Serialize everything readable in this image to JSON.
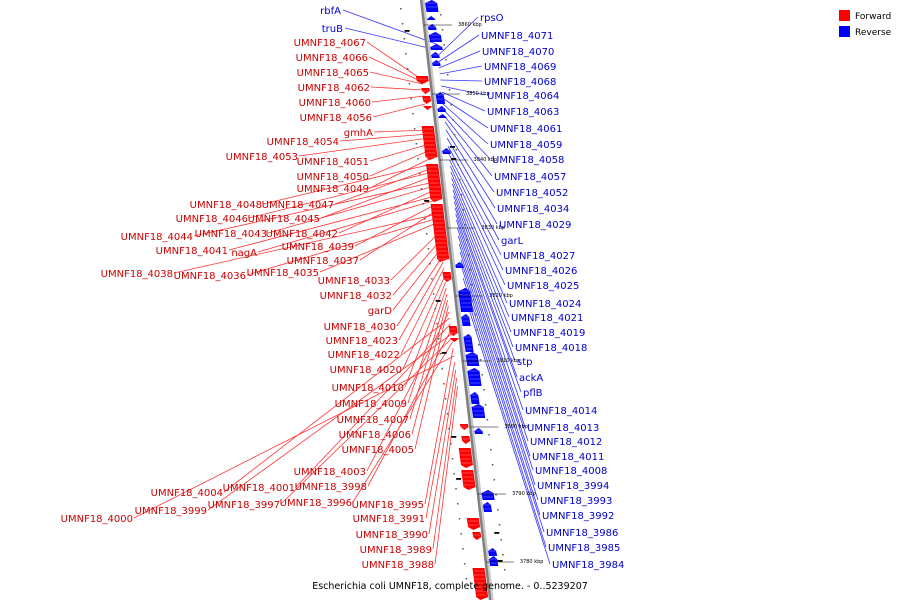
{
  "caption": "Escherichia coli UMNF18, complete genome. - 0..5239207",
  "legend": [
    {
      "label": "Forward",
      "color": "#ff0000"
    },
    {
      "label": "Reverse",
      "color": "#0000ff"
    }
  ],
  "colors": {
    "forward_label": "#cc0000",
    "reverse_label": "#0000cc",
    "forward_feature": "#ff0000",
    "reverse_feature": "#0000ff",
    "backbone": "#808080",
    "leader_forward": "#ff3333",
    "leader_reverse": "#3333ff"
  },
  "scale_ticks": [
    "3860 kbp",
    "3850 kbp",
    "3840 kbp",
    "3830 kbp",
    "3820 kbp",
    "3810 kbp",
    "3800 kbp",
    "3790 kbp",
    "3780 kbp"
  ],
  "forward_genes": [
    "UMNF18_4067",
    "UMNF18_4066",
    "UMNF18_4065",
    "UMNF18_4062",
    "UMNF18_4060",
    "UMNF18_4056",
    "gmhA",
    "UMNF18_4054",
    "UMNF18_4053",
    "UMNF18_4051",
    "UMNF18_4050",
    "UMNF18_4049",
    "UMNF18_4048",
    "UMNF18_4047",
    "UMNF18_4046",
    "UMNF18_4045",
    "UMNF18_4044",
    "UMNF18_4043",
    "UMNF18_4042",
    "UMNF18_4041",
    "nagA",
    "UMNF18_4039",
    "UMNF18_4037",
    "UMNF18_4038",
    "UMNF18_4036",
    "UMNF18_4035",
    "UMNF18_4033",
    "UMNF18_4032",
    "garD",
    "UMNF18_4030",
    "UMNF18_4023",
    "UMNF18_4022",
    "UMNF18_4020",
    "UMNF18_4010",
    "UMNF18_4009",
    "UMNF18_4007",
    "UMNF18_4006",
    "UMNF18_4005",
    "UMNF18_4003",
    "UMNF18_4004",
    "UMNF18_4001",
    "UMNF18_3998",
    "UMNF18_3999",
    "UMNF18_3997",
    "UMNF18_3996",
    "UMNF18_3995",
    "UMNF18_4000",
    "UMNF18_3991",
    "UMNF18_3990",
    "UMNF18_3989",
    "UMNF18_3988"
  ],
  "reverse_genes": [
    "rbfA",
    "truB",
    "rpsO",
    "UMNF18_4071",
    "UMNF18_4070",
    "UMNF18_4069",
    "UMNF18_4068",
    "UMNF18_4064",
    "UMNF18_4063",
    "UMNF18_4061",
    "UMNF18_4059",
    "UMNF18_4058",
    "UMNF18_4057",
    "UMNF18_4052",
    "UMNF18_4034",
    "UMNF18_4029",
    "garL",
    "UMNF18_4027",
    "UMNF18_4026",
    "UMNF18_4025",
    "UMNF18_4024",
    "UMNF18_4021",
    "UMNF18_4019",
    "UMNF18_4018",
    "stp",
    "ackA",
    "pflB",
    "UMNF18_4014",
    "UMNF18_4013",
    "UMNF18_4012",
    "UMNF18_4011",
    "UMNF18_4008",
    "UMNF18_3994",
    "UMNF18_3993",
    "UMNF18_3992",
    "UMNF18_3986",
    "UMNF18_3985",
    "UMNF18_3984"
  ]
}
